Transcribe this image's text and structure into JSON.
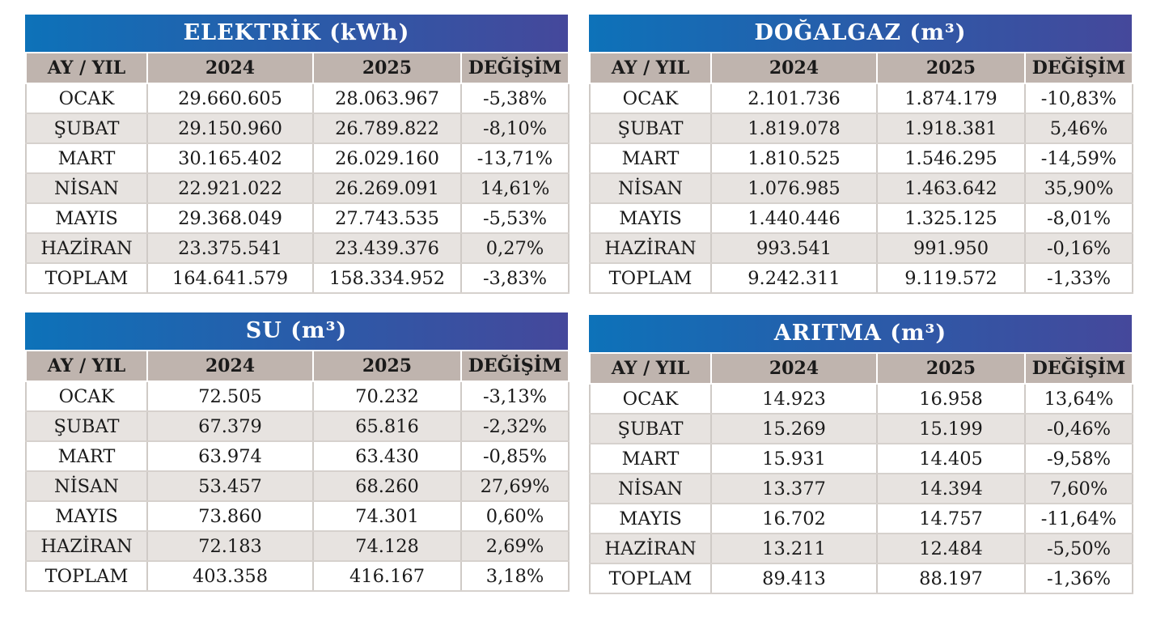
{
  "columns": [
    "AY / YIL",
    "2024",
    "2025",
    "DEĞİŞİM"
  ],
  "tables": [
    {
      "title": "ELEKTRİK (kWh)",
      "rows": [
        [
          "OCAK",
          "29.660.605",
          "28.063.967",
          "-5,38%"
        ],
        [
          "ŞUBAT",
          "29.150.960",
          "26.789.822",
          "-8,10%"
        ],
        [
          "MART",
          "30.165.402",
          "26.029.160",
          "-13,71%"
        ],
        [
          "NİSAN",
          "22.921.022",
          "26.269.091",
          "14,61%"
        ],
        [
          "MAYIS",
          "29.368.049",
          "27.743.535",
          "-5,53%"
        ],
        [
          "HAZİRAN",
          "23.375.541",
          "23.439.376",
          "0,27%"
        ],
        [
          "TOPLAM",
          "164.641.579",
          "158.334.952",
          "-3,83%"
        ]
      ]
    },
    {
      "title": "DOĞALGAZ (m³)",
      "rows": [
        [
          "OCAK",
          "2.101.736",
          "1.874.179",
          "-10,83%"
        ],
        [
          "ŞUBAT",
          "1.819.078",
          "1.918.381",
          "5,46%"
        ],
        [
          "MART",
          "1.810.525",
          "1.546.295",
          "-14,59%"
        ],
        [
          "NİSAN",
          "1.076.985",
          "1.463.642",
          "35,90%"
        ],
        [
          "MAYIS",
          "1.440.446",
          "1.325.125",
          "-8,01%"
        ],
        [
          "HAZİRAN",
          "993.541",
          "991.950",
          "-0,16%"
        ],
        [
          "TOPLAM",
          "9.242.311",
          "9.119.572",
          "-1,33%"
        ]
      ]
    },
    {
      "title": "SU (m³)",
      "rows": [
        [
          "OCAK",
          "72.505",
          "70.232",
          "-3,13%"
        ],
        [
          "ŞUBAT",
          "67.379",
          "65.816",
          "-2,32%"
        ],
        [
          "MART",
          "63.974",
          "63.430",
          "-0,85%"
        ],
        [
          "NİSAN",
          "53.457",
          "68.260",
          "27,69%"
        ],
        [
          "MAYIS",
          "73.860",
          "74.301",
          "0,60%"
        ],
        [
          "HAZİRAN",
          "72.183",
          "74.128",
          "2,69%"
        ],
        [
          "TOPLAM",
          "403.358",
          "416.167",
          "3,18%"
        ]
      ]
    },
    {
      "title": "ARITMA (m³)",
      "rows": [
        [
          "OCAK",
          "14.923",
          "16.958",
          "13,64%"
        ],
        [
          "ŞUBAT",
          "15.269",
          "15.199",
          "-0,46%"
        ],
        [
          "MART",
          "15.931",
          "14.405",
          "-9,58%"
        ],
        [
          "NİSAN",
          "13.377",
          "14.394",
          "7,60%"
        ],
        [
          "MAYIS",
          "16.702",
          "14.757",
          "-11,64%"
        ],
        [
          "HAZİRAN",
          "13.211",
          "12.484",
          "-5,50%"
        ],
        [
          "TOPLAM",
          "89.413",
          "88.197",
          "-1,36%"
        ]
      ]
    }
  ]
}
